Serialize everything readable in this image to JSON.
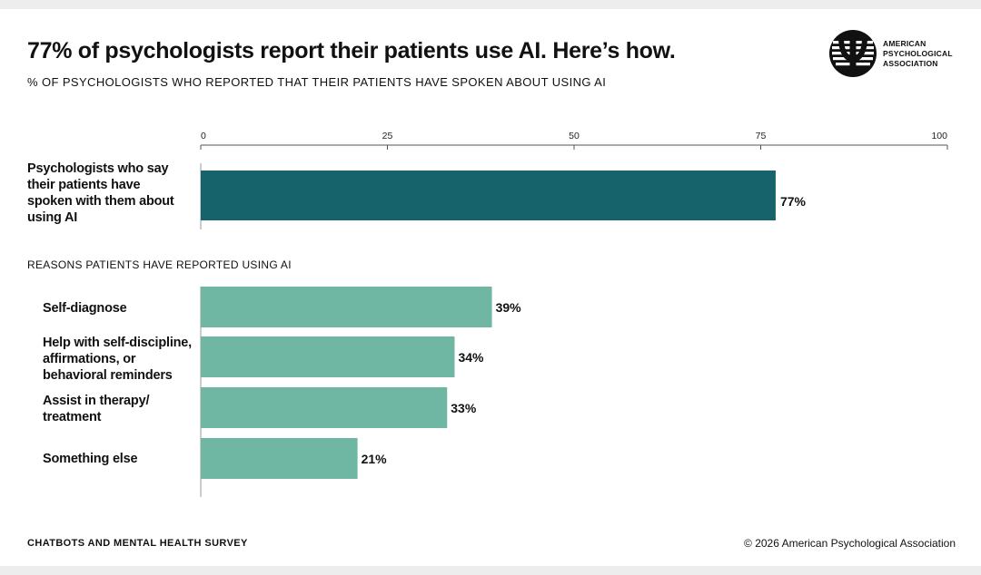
{
  "title": "77% of psychologists report their patients use AI. Here’s how.",
  "subtitle": "% OF PSYCHOLOGISTS WHO REPORTED THAT THEIR PATIENTS HAVE SPOKEN ABOUT USING AI",
  "logo": {
    "line1": "AMERICAN",
    "line2": "PSYCHOLOGICAL",
    "line3": "ASSOCIATION",
    "icon": "psi-logo-icon"
  },
  "section_label": "REASONS PATIENTS HAVE REPORTED USING AI",
  "footer": {
    "source": "CHATBOTS AND MENTAL HEALTH SURVEY",
    "copyright": "© 2026 American Psychological Association"
  },
  "colors": {
    "primary_bar": "#17636b",
    "reason_bar": "#6fb7a2"
  },
  "chart_data": {
    "type": "bar",
    "orientation": "horizontal",
    "xlim": [
      0,
      100
    ],
    "ticks": [
      "0",
      "25",
      "50",
      "75",
      "100"
    ],
    "grid": false,
    "primary": {
      "label": "Psychologists who say their patients have spoken with them about using AI",
      "value": 77,
      "value_label": "77%"
    },
    "reasons": [
      {
        "label": "Self-diagnose",
        "value": 39,
        "value_label": "39%"
      },
      {
        "label": "Help with self-discipline, affirmations, or behavioral reminders",
        "value": 34,
        "value_label": "34%"
      },
      {
        "label": "Assist in therapy/ treatment",
        "value": 33,
        "value_label": "33%"
      },
      {
        "label": "Something else",
        "value": 21,
        "value_label": "21%"
      }
    ]
  }
}
